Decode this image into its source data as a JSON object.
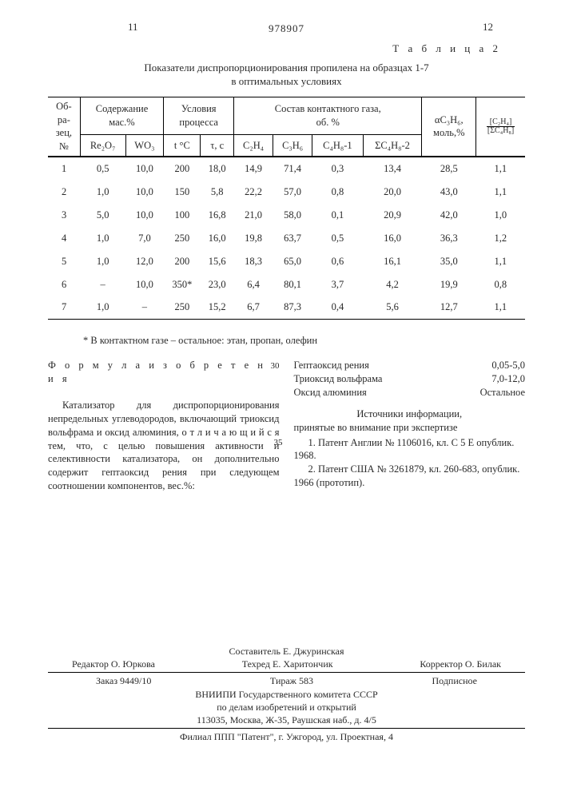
{
  "page_left": "11",
  "page_right": "12",
  "patent_number": "978907",
  "table_label": "Т а б л и ц а   2",
  "table_title_l1": "Показатели диспропорционирования пропилена на образцах 1-7",
  "table_title_l2": "в оптимальных условиях",
  "headers": {
    "h1": "Об-\nра-\nзец,\n№",
    "h2": "Содержание\nмас.%",
    "h3": "Условия\nпроцесса",
    "h4": "Состав контактного газа,\nоб. %",
    "h5_a": "αC₃H₆,",
    "h5_b": "моль,%",
    "sub": {
      "re207": "Re₂O₇",
      "wo3": "WO₃",
      "tc": "t °C",
      "tau": "τ, с",
      "c2h4": "C₂H₄",
      "c3h6": "C₃H₆",
      "c4h8_1": "C₄H₈-1",
      "c4h8_2": "ΣC₄H₈-2"
    }
  },
  "rows": [
    [
      "1",
      "0,5",
      "10,0",
      "200",
      "18,0",
      "14,9",
      "71,4",
      "0,3",
      "13,4",
      "28,5",
      "1,1"
    ],
    [
      "2",
      "1,0",
      "10,0",
      "150",
      "5,8",
      "22,2",
      "57,0",
      "0,8",
      "20,0",
      "43,0",
      "1,1"
    ],
    [
      "3",
      "5,0",
      "10,0",
      "100",
      "16,8",
      "21,0",
      "58,0",
      "0,1",
      "20,9",
      "42,0",
      "1,0"
    ],
    [
      "4",
      "1,0",
      "7,0",
      "250",
      "16,0",
      "19,8",
      "63,7",
      "0,5",
      "16,0",
      "36,3",
      "1,2"
    ],
    [
      "5",
      "1,0",
      "12,0",
      "200",
      "15,6",
      "18,3",
      "65,0",
      "0,6",
      "16,1",
      "35,0",
      "1,1"
    ],
    [
      "6",
      "–",
      "10,0",
      "350*",
      "23,0",
      "6,4",
      "80,1",
      "3,7",
      "4,2",
      "19,9",
      "0,8"
    ],
    [
      "7",
      "1,0",
      "–",
      "250",
      "15,2",
      "6,7",
      "87,3",
      "0,4",
      "5,6",
      "12,7",
      "1,1"
    ]
  ],
  "footnote": "* В контактном газе – остальное: этан, пропан, олефин",
  "formula_title": "Ф о р м у л а   и з о б р е т е н и я",
  "margin_30": "30",
  "margin_35": "35",
  "claim_text": "Катализатор для диспропорционирования непредельных углеводородов, включающий триоксид   вольфрама и оксид алюминия, о т л и ч а ю щ и й с я   тем, что, с целью повышения активности и селективности катализатора, он дополнительно содержит гептаоксид рения при следующем соотношении компонентов, вес.%:",
  "components": [
    [
      "Гептаоксид рения",
      "0,05-5,0"
    ],
    [
      "Триоксид вольфрама",
      "7,0-12,0"
    ],
    [
      "Оксид алюминия",
      "Остальное"
    ]
  ],
  "sources_title": "Источники информации,",
  "sources_sub": "принятые во внимание при экспертизе",
  "src1": "1. Патент Англии № 1106016, кл. С  5 Е  опублик. 1968.",
  "src2": "2. Патент США № 3261879, кл. 260-683, опублик. 1966 (прототип).",
  "footer": {
    "compiler": "Составитель Е. Джуринская",
    "editor": "Редактор О. Юркова",
    "tech": "Техред Е. Харитончик",
    "corr": "Корректор О. Билак",
    "order": "Заказ 9449/10",
    "tirazh": "Тираж 583",
    "podpis": "Подписное",
    "org1": "ВНИИПИ Государственного комитета СССР",
    "org2": "по делам изобретений и открытий",
    "addr1": "113035, Москва, Ж-35, Раушская наб., д. 4/5",
    "addr2": "Филиал ППП \"Патент\", г. Ужгород, ул. Проектная, 4"
  }
}
